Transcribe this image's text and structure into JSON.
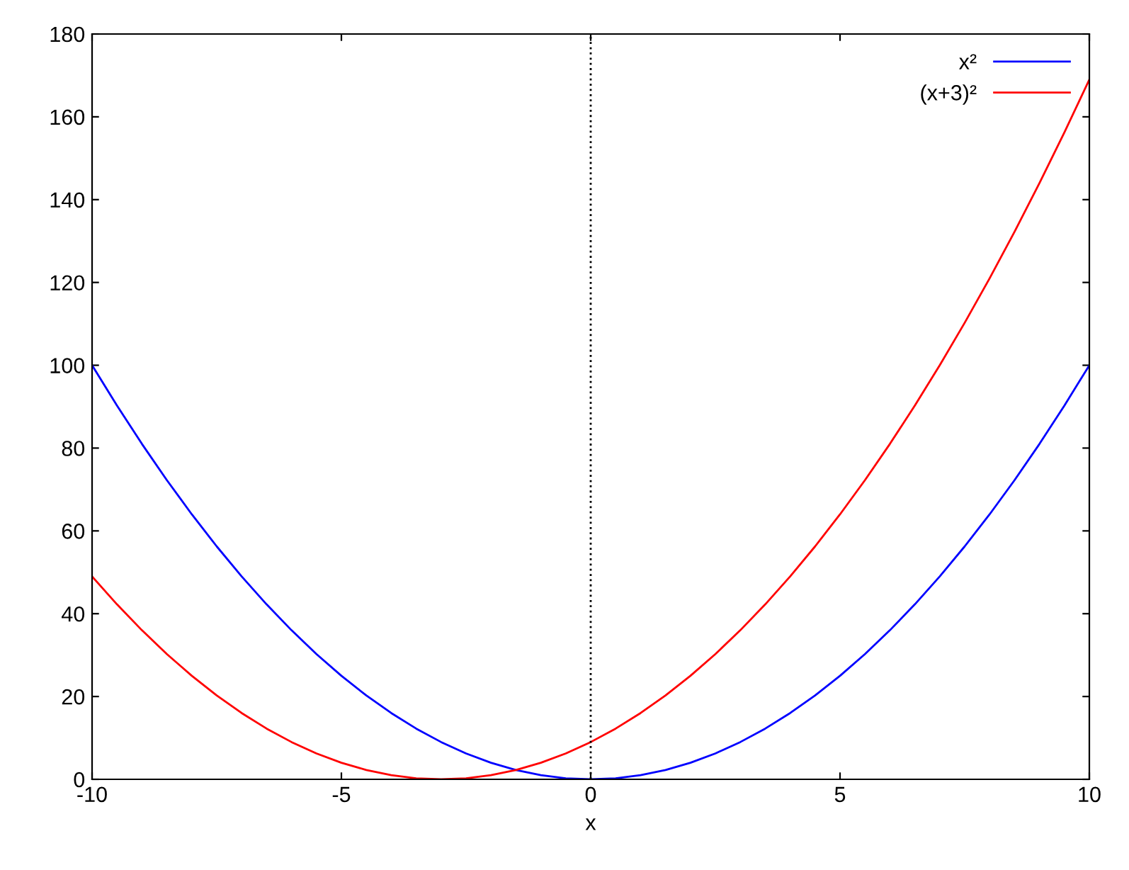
{
  "chart_data": {
    "type": "line",
    "xlabel": "x",
    "x": [
      -10,
      -9.5,
      -9,
      -8.5,
      -8,
      -7.5,
      -7,
      -6.5,
      -6,
      -5.5,
      -5,
      -4.5,
      -4,
      -3.5,
      -3,
      -2.5,
      -2,
      -1.5,
      -1,
      -0.5,
      0,
      0.5,
      1,
      1.5,
      2,
      2.5,
      3,
      3.5,
      4,
      4.5,
      5,
      5.5,
      6,
      6.5,
      7,
      7.5,
      8,
      8.5,
      9,
      9.5,
      10
    ],
    "series": [
      {
        "name": "x²",
        "color": "#0000ff",
        "values": [
          100,
          90.25,
          81,
          72.25,
          64,
          56.25,
          49,
          42.25,
          36,
          30.25,
          25,
          20.25,
          16,
          12.25,
          9,
          6.25,
          4,
          2.25,
          1,
          0.25,
          0,
          0.25,
          1,
          2.25,
          4,
          6.25,
          9,
          12.25,
          16,
          20.25,
          25,
          30.25,
          36,
          42.25,
          49,
          56.25,
          64,
          72.25,
          81,
          90.25,
          100
        ]
      },
      {
        "name": "(x+3)²",
        "color": "#ff0000",
        "values": [
          49,
          42.25,
          36,
          30.25,
          25,
          20.25,
          16,
          12.25,
          9,
          6.25,
          4,
          2.25,
          1,
          0.25,
          0,
          0.25,
          1,
          2.25,
          4,
          6.25,
          9,
          12.25,
          16,
          20.25,
          25,
          30.25,
          36,
          42.25,
          49,
          56.25,
          64,
          72.25,
          81,
          90.25,
          100,
          110.25,
          121,
          132.25,
          144,
          156.25,
          169
        ]
      }
    ],
    "xlim": [
      -10,
      10
    ],
    "xticks": [
      -10,
      -5,
      0,
      5,
      10
    ],
    "ylim": [
      0,
      180
    ],
    "yticks": [
      0,
      20,
      40,
      60,
      80,
      100,
      120,
      140,
      160,
      180
    ],
    "ref_lines": [
      {
        "axis": "x",
        "value": 0,
        "color": "#000000",
        "line_style": "dotted"
      }
    ],
    "grid": false,
    "legend": "top right",
    "marker": "none",
    "line_style": "solid"
  }
}
